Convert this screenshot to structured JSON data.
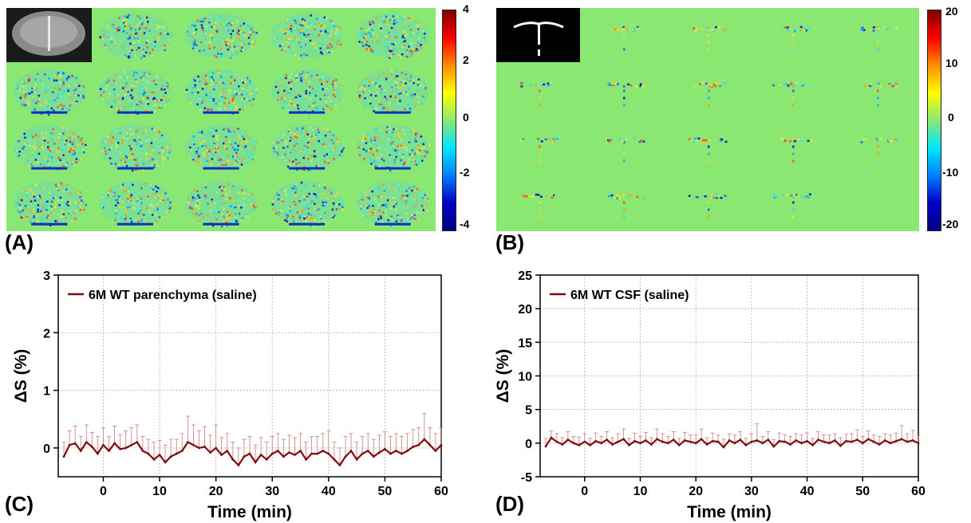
{
  "panels": {
    "A": {
      "letter": "(A)",
      "colorbar": {
        "ticks": [
          "4",
          "2",
          "0",
          "-2",
          "-4"
        ],
        "min": -4,
        "max": 4
      }
    },
    "B": {
      "letter": "(B)",
      "colorbar": {
        "ticks": [
          "20",
          "10",
          "0",
          "-10",
          "-20"
        ],
        "min": -20,
        "max": 20
      }
    },
    "C": {
      "letter": "(C)"
    },
    "D": {
      "letter": "(D)"
    }
  },
  "colors": {
    "map_background": "#8ae872",
    "series": "#7f0d0d",
    "error_bar": "#c97a7a",
    "grid": "#b0b0b0"
  },
  "chart_data": [
    {
      "panel": "C",
      "type": "line",
      "title": "",
      "xlabel": "Time (min)",
      "ylabel": "ΔS (%)",
      "xlim": [
        -8,
        60
      ],
      "ylim": [
        -0.5,
        3
      ],
      "xticks": [
        0,
        10,
        20,
        30,
        40,
        50,
        60
      ],
      "yticks": [
        0,
        1,
        2,
        3
      ],
      "grid": true,
      "legend": "top-left",
      "series": [
        {
          "name": "6M WT parenchyma (saline)",
          "x": [
            -7,
            -6,
            -5,
            -4,
            -3,
            -2,
            -1,
            0,
            1,
            2,
            3,
            4,
            5,
            6,
            7,
            8,
            9,
            10,
            11,
            12,
            13,
            14,
            15,
            16,
            17,
            18,
            19,
            20,
            21,
            22,
            23,
            24,
            25,
            26,
            27,
            28,
            29,
            30,
            31,
            32,
            33,
            34,
            35,
            36,
            37,
            38,
            39,
            40,
            41,
            42,
            43,
            44,
            45,
            46,
            47,
            48,
            49,
            50,
            51,
            52,
            53,
            54,
            55,
            56,
            57,
            58,
            59,
            60
          ],
          "y": [
            -0.15,
            0.05,
            0.08,
            -0.05,
            0.1,
            0.02,
            -0.1,
            0.05,
            -0.05,
            0.08,
            -0.02,
            0.0,
            0.05,
            0.1,
            -0.05,
            -0.1,
            -0.2,
            -0.12,
            -0.25,
            -0.15,
            -0.1,
            -0.05,
            0.1,
            0.05,
            0.0,
            0.02,
            -0.08,
            0.0,
            -0.12,
            -0.05,
            -0.2,
            -0.3,
            -0.15,
            -0.1,
            -0.25,
            -0.12,
            -0.2,
            -0.1,
            -0.05,
            -0.15,
            -0.08,
            -0.12,
            -0.05,
            -0.2,
            -0.1,
            -0.1,
            -0.05,
            -0.1,
            -0.2,
            -0.3,
            -0.15,
            -0.05,
            -0.2,
            -0.1,
            -0.05,
            -0.15,
            -0.08,
            -0.02,
            -0.1,
            -0.05,
            -0.1,
            -0.05,
            0.02,
            0.05,
            0.15,
            0.05,
            -0.05,
            0.05
          ],
          "err": [
            0.25,
            0.25,
            0.3,
            0.25,
            0.3,
            0.25,
            0.3,
            0.3,
            0.25,
            0.3,
            0.25,
            0.3,
            0.3,
            0.3,
            0.25,
            0.25,
            0.3,
            0.25,
            0.3,
            0.3,
            0.25,
            0.3,
            0.45,
            0.35,
            0.3,
            0.35,
            0.3,
            0.4,
            0.3,
            0.3,
            0.3,
            0.3,
            0.3,
            0.3,
            0.3,
            0.3,
            0.3,
            0.3,
            0.3,
            0.3,
            0.3,
            0.3,
            0.3,
            0.3,
            0.3,
            0.3,
            0.3,
            0.4,
            0.3,
            0.3,
            0.35,
            0.3,
            0.3,
            0.3,
            0.3,
            0.3,
            0.3,
            0.3,
            0.3,
            0.3,
            0.3,
            0.3,
            0.3,
            0.3,
            0.45,
            0.3,
            0.3,
            0.3
          ]
        }
      ]
    },
    {
      "panel": "D",
      "type": "line",
      "title": "",
      "xlabel": "Time (min)",
      "ylabel": "ΔS (%)",
      "xlim": [
        -8,
        60
      ],
      "ylim": [
        -5,
        25
      ],
      "xticks": [
        0,
        10,
        20,
        30,
        40,
        50,
        60
      ],
      "yticks": [
        -5,
        0,
        5,
        10,
        15,
        20,
        25
      ],
      "grid": true,
      "legend": "top-left",
      "series": [
        {
          "name": "6M WT CSF (saline)",
          "x": [
            -7,
            -6,
            -5,
            -4,
            -3,
            -2,
            -1,
            0,
            1,
            2,
            3,
            4,
            5,
            6,
            7,
            8,
            9,
            10,
            11,
            12,
            13,
            14,
            15,
            16,
            17,
            18,
            19,
            20,
            21,
            22,
            23,
            24,
            25,
            26,
            27,
            28,
            29,
            30,
            31,
            32,
            33,
            34,
            35,
            36,
            37,
            38,
            39,
            40,
            41,
            42,
            43,
            44,
            45,
            46,
            47,
            48,
            49,
            50,
            51,
            52,
            53,
            54,
            55,
            56,
            57,
            58,
            59,
            60
          ],
          "y": [
            -0.5,
            0.8,
            0.2,
            -0.2,
            0.5,
            0.0,
            -0.3,
            0.2,
            -0.3,
            0.3,
            0.0,
            0.5,
            -0.2,
            0.2,
            0.6,
            -0.3,
            0.3,
            0.0,
            0.4,
            -0.2,
            0.6,
            0.2,
            0.0,
            0.5,
            -0.3,
            0.4,
            0.2,
            0.0,
            0.6,
            -0.2,
            0.3,
            0.2,
            -0.6,
            0.4,
            0.0,
            0.5,
            -0.3,
            0.2,
            0.4,
            0.0,
            0.5,
            -0.5,
            0.3,
            0.2,
            -0.2,
            0.4,
            0.0,
            0.3,
            -0.3,
            0.5,
            0.2,
            0.0,
            0.4,
            -0.4,
            0.3,
            0.2,
            0.5,
            0.0,
            0.6,
            0.2,
            -0.2,
            0.4,
            0.0,
            0.3,
            0.6,
            0.2,
            0.4,
            0.0
          ],
          "err": [
            1.2,
            1.0,
            1.2,
            1.0,
            1.2,
            1.0,
            1.2,
            1.2,
            1.0,
            1.2,
            1.0,
            1.2,
            1.0,
            1.2,
            1.5,
            1.0,
            1.2,
            1.0,
            1.2,
            1.0,
            1.5,
            1.2,
            1.0,
            1.2,
            1.0,
            1.2,
            1.0,
            1.2,
            1.5,
            1.0,
            1.2,
            1.0,
            1.2,
            1.0,
            1.2,
            1.2,
            1.0,
            1.2,
            2.5,
            1.0,
            1.2,
            1.0,
            1.2,
            1.0,
            1.2,
            1.0,
            1.2,
            1.2,
            1.0,
            1.2,
            1.0,
            1.2,
            1.0,
            1.2,
            1.0,
            1.2,
            1.5,
            1.0,
            1.2,
            1.0,
            1.2,
            1.0,
            1.2,
            1.2,
            2.0,
            1.2,
            1.5,
            1.2
          ]
        }
      ]
    }
  ]
}
